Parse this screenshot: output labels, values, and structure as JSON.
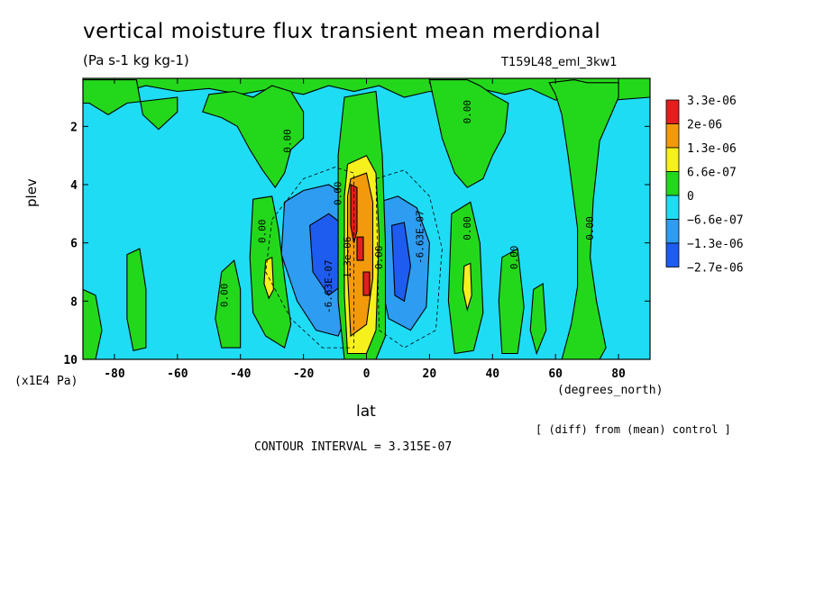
{
  "title": "vertical moisture flux transient mean merdional",
  "subtitle": "(Pa s-1 kg kg-1)",
  "run_label": "T159L48_eml_3kw1",
  "diff_note": "[ (diff) from (mean) control ]",
  "contour_interval": "CONTOUR INTERVAL = 3.315E-07",
  "colors": {
    "c_red": "#e41d1d",
    "c_orange": "#f29a0c",
    "c_yellow": "#f6f01d",
    "c_green": "#23d81b",
    "c_cyan": "#1fdcf5",
    "c_blue1": "#2e9cf0",
    "c_blue2": "#1e5cf0"
  },
  "chart_data": {
    "type": "heatmap",
    "xlabel": "lat",
    "x_unit": "(degrees_north)",
    "ylabel": "plev",
    "y_unit": "(x1E4 Pa)",
    "xlim": [
      -90,
      90
    ],
    "ylim": [
      10,
      0.35
    ],
    "y_inverted": true,
    "x_ticks": [
      "-80",
      "-60",
      "-40",
      "-20",
      "0",
      "20",
      "40",
      "60",
      "80"
    ],
    "y_ticks": [
      "2",
      "4",
      "6",
      "8",
      "10"
    ],
    "legend_placement": "right",
    "legend": [
      {
        "label": "3.3e-06",
        "color": "#e41d1d"
      },
      {
        "label": "2e-06",
        "color": "#f29a0c"
      },
      {
        "label": "1.3e-06",
        "color": "#f6f01d"
      },
      {
        "label": "6.6e-07",
        "color": "#23d81b"
      },
      {
        "label": "0",
        "color": "#1fdcf5"
      },
      {
        "label": "−6.6e-07",
        "color": "#2e9cf0"
      },
      {
        "label": "−1.3e-06",
        "color": "#1e5cf0"
      },
      {
        "label": "−2.7e-06",
        "color": null
      }
    ],
    "background_level": "0 to -6.6e-07",
    "regions": [
      {
        "label": "positive plume SH mid-latitudes",
        "lat": [
          -50,
          -22
        ],
        "plev": [
          0.9,
          4.0
        ],
        "level": "0 to 6.6e-07"
      },
      {
        "label": "positive plume NH subtropics",
        "lat": [
          22,
          45
        ],
        "plev": [
          0.4,
          4.0
        ],
        "level": "0 to 6.6e-07"
      },
      {
        "label": "positive column NH high latitudes",
        "lat": [
          60,
          80
        ],
        "plev": [
          0.6,
          10.0
        ],
        "level": "0 to 6.6e-07"
      },
      {
        "label": "equatorial core",
        "lat": [
          -7,
          2
        ],
        "plev": [
          3.3,
          9.8
        ],
        "level": "2e-06 to 3.3e-06"
      },
      {
        "label": "equatorial maximum",
        "lat": [
          -5,
          -3
        ],
        "plev": [
          4.0,
          6.0
        ],
        "level": ">3.3e-06"
      },
      {
        "label": "negative lobe south",
        "lat": [
          -28,
          -6
        ],
        "plev": [
          4.2,
          9.0
        ],
        "level": "-6.6e-07 to -1.3e-06"
      },
      {
        "label": "negative lobe north",
        "lat": [
          5,
          20
        ],
        "plev": [
          4.5,
          9.0
        ],
        "level": "-6.6e-07 to -1.3e-06"
      },
      {
        "label": "SH positive column",
        "lat": [
          -33,
          -30
        ],
        "plev": [
          4.8,
          8.2
        ],
        "level": "6.6e-07 to 1.3e-06"
      },
      {
        "label": "NH positive column",
        "lat": [
          30,
          33
        ],
        "plev": [
          6.0,
          8.5
        ],
        "level": "6.6e-07 to 1.3e-06"
      }
    ],
    "contour_labels": [
      {
        "text": "0.00",
        "lat": -32,
        "plev": 5.6
      },
      {
        "text": "0.00",
        "lat": -44,
        "plev": 7.8
      },
      {
        "text": "0.00",
        "lat": -24,
        "plev": 2.5
      },
      {
        "text": "0.00",
        "lat": 33,
        "plev": 1.5
      },
      {
        "text": "0.00",
        "lat": 33,
        "plev": 5.5
      },
      {
        "text": "0.00",
        "lat": 48,
        "plev": 6.5
      },
      {
        "text": "0.00",
        "lat": 72,
        "plev": 5.5
      },
      {
        "text": "0.00",
        "lat": -8,
        "plev": 4.3
      },
      {
        "text": "-6.63E-07",
        "lat": -11,
        "plev": 7.5
      },
      {
        "text": "-6.63E-07",
        "lat": 18,
        "plev": 5.8
      },
      {
        "text": "0.00",
        "lat": 5,
        "plev": 6.5
      },
      {
        "text": "1.3e-06",
        "lat": -5,
        "plev": 6.5
      }
    ]
  }
}
